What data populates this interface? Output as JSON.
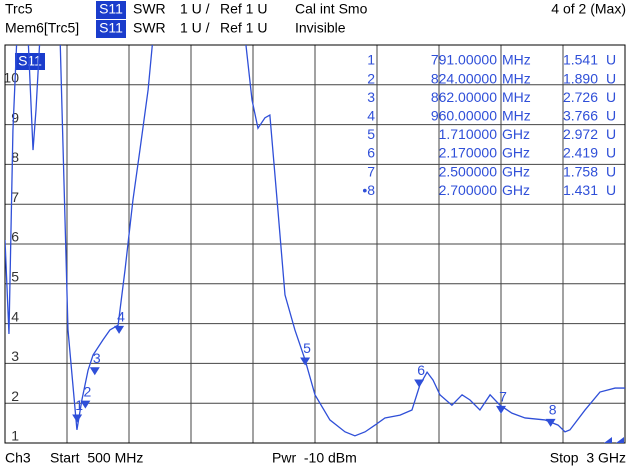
{
  "header": {
    "rows": [
      [
        "Trc5",
        "S11",
        "SWR",
        "1 U /",
        "Ref 1 U",
        "Cal int Smo",
        "4 of 2 (Max)"
      ],
      [
        "Mem6[Trc5]",
        "S11",
        "SWR",
        "1 U /",
        "Ref 1 U",
        "Invisible"
      ]
    ]
  },
  "chart_data": {
    "type": "line",
    "trace_label": "S11",
    "xlim": [
      500,
      3000
    ],
    "xticks": [
      500,
      750,
      1000,
      1250,
      1500,
      1750,
      2000,
      2250,
      2500,
      2750,
      3000
    ],
    "ylim": [
      1,
      11
    ],
    "yticks": [
      1,
      2,
      3,
      4,
      5,
      6,
      7,
      8,
      9,
      10
    ],
    "grid": true,
    "x": [
      500,
      516,
      532,
      548,
      593,
      613,
      625,
      641,
      722,
      754,
      790,
      810,
      835,
      855,
      895,
      923,
      956,
      984,
      1016,
      1044,
      1077,
      1097,
      1468,
      1496,
      1520,
      1548,
      1568,
      1597,
      1629,
      1669,
      1710,
      1750,
      1810,
      1871,
      1911,
      1952,
      1992,
      2032,
      2093,
      2141,
      2173,
      2202,
      2226,
      2254,
      2302,
      2343,
      2375,
      2415,
      2456,
      2496,
      2544,
      2597,
      2677,
      2730,
      2758,
      2778,
      2839,
      2899,
      2960,
      3000
    ],
    "series": [
      {
        "color": "#2f4fd8",
        "values": [
          6.1,
          3.74,
          8.86,
          11.2,
          11.2,
          8.36,
          9.37,
          11.2,
          11.2,
          3.84,
          1.33,
          2.08,
          2.83,
          3.21,
          3.59,
          3.84,
          3.96,
          5.35,
          7.11,
          8.36,
          9.87,
          11.2,
          11.2,
          9.62,
          8.91,
          9.17,
          9.24,
          7.11,
          4.72,
          3.84,
          3.09,
          2.21,
          1.58,
          1.28,
          1.18,
          1.28,
          1.45,
          1.63,
          1.7,
          1.83,
          2.46,
          2.78,
          2.58,
          2.21,
          1.95,
          2.21,
          2.08,
          1.83,
          2.21,
          1.95,
          1.75,
          1.63,
          1.58,
          1.45,
          1.28,
          1.33,
          1.83,
          2.28,
          2.38,
          2.38
        ]
      }
    ],
    "markers": {
      "labels": [
        "1",
        "2",
        "3",
        "4",
        "5",
        "6",
        "7",
        "8"
      ],
      "numbers": [
        "1",
        "2",
        "3",
        "4",
        "5",
        "6",
        "7",
        "•8"
      ],
      "freqs": [
        791,
        824,
        862,
        960,
        1710,
        2170,
        2500,
        2700
      ],
      "freq_labels": [
        "791.00000",
        "824.00000",
        "862.00000",
        "960.00000",
        "1.710000",
        "2.170000",
        "2.500000",
        "2.700000"
      ],
      "units": [
        "MHz",
        "MHz",
        "MHz",
        "MHz",
        "GHz",
        "GHz",
        "GHz",
        "GHz"
      ],
      "values": [
        1.541,
        1.89,
        2.726,
        3.766,
        2.972,
        2.419,
        1.758,
        1.431
      ],
      "value_labels": [
        "1.541",
        "1.890",
        "2.726",
        "3.766",
        "2.972",
        "2.419",
        "1.758",
        "1.431"
      ],
      "value_unit": "U"
    }
  },
  "footer": {
    "channel": "Ch3",
    "start": "Start  500 MHz",
    "power": "Pwr  -10 dBm",
    "stop": "Stop  3 GHz"
  }
}
